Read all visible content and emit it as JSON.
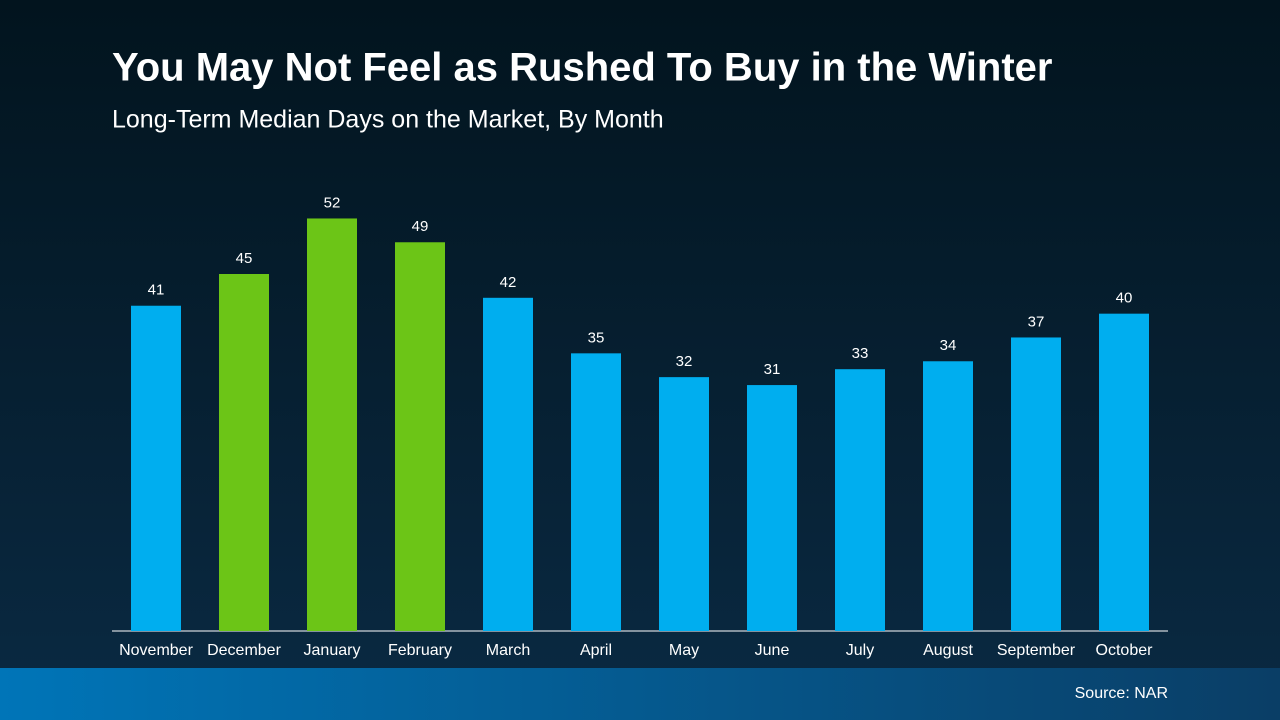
{
  "chart_data": {
    "type": "bar",
    "title": "You May Not Feel as Rushed To Buy in the Winter",
    "subtitle": "Long-Term Median Days on the Market, By Month",
    "source": "Source: NAR",
    "categories": [
      "November",
      "December",
      "January",
      "February",
      "March",
      "April",
      "May",
      "June",
      "July",
      "August",
      "September",
      "October"
    ],
    "values": [
      41,
      45,
      52,
      49,
      42,
      35,
      32,
      31,
      33,
      34,
      37,
      40
    ],
    "colors": [
      "#00aeef",
      "#6cc517",
      "#6cc517",
      "#6cc517",
      "#00aeef",
      "#00aeef",
      "#00aeef",
      "#00aeef",
      "#00aeef",
      "#00aeef",
      "#00aeef",
      "#00aeef"
    ],
    "ylim": [
      0,
      60
    ]
  }
}
